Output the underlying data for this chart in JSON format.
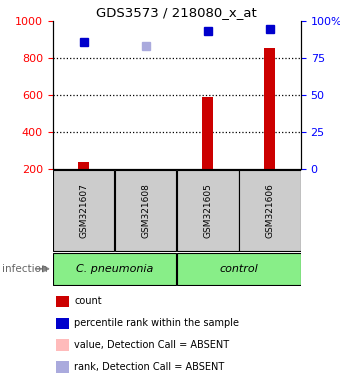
{
  "title": "GDS3573 / 218080_x_at",
  "samples": [
    "GSM321607",
    "GSM321608",
    "GSM321605",
    "GSM321606"
  ],
  "counts": [
    240,
    185,
    590,
    855
  ],
  "percentile_ranks": [
    86,
    83,
    93,
    95
  ],
  "absent_flags": [
    false,
    true,
    false,
    false
  ],
  "ylim_left": [
    200,
    1000
  ],
  "ylim_right": [
    0,
    100
  ],
  "yticks_left": [
    200,
    400,
    600,
    800,
    1000
  ],
  "yticks_right": [
    0,
    25,
    50,
    75,
    100
  ],
  "bar_color": "#cc0000",
  "dot_color_present": "#0000cc",
  "dot_color_absent_rank": "#aaaadd",
  "dot_color_absent_val": "#ffbbbb",
  "sample_box_color": "#cccccc",
  "background_color": "#ffffff",
  "group_color": "#88ee88",
  "group_labels": [
    "C. pneumonia",
    "control"
  ],
  "legend_items": [
    {
      "label": "count",
      "color": "#cc0000"
    },
    {
      "label": "percentile rank within the sample",
      "color": "#0000cc"
    },
    {
      "label": "value, Detection Call = ABSENT",
      "color": "#ffbbbb"
    },
    {
      "label": "rank, Detection Call = ABSENT",
      "color": "#aaaadd"
    }
  ],
  "infection_label": "infection",
  "bar_width": 0.18
}
